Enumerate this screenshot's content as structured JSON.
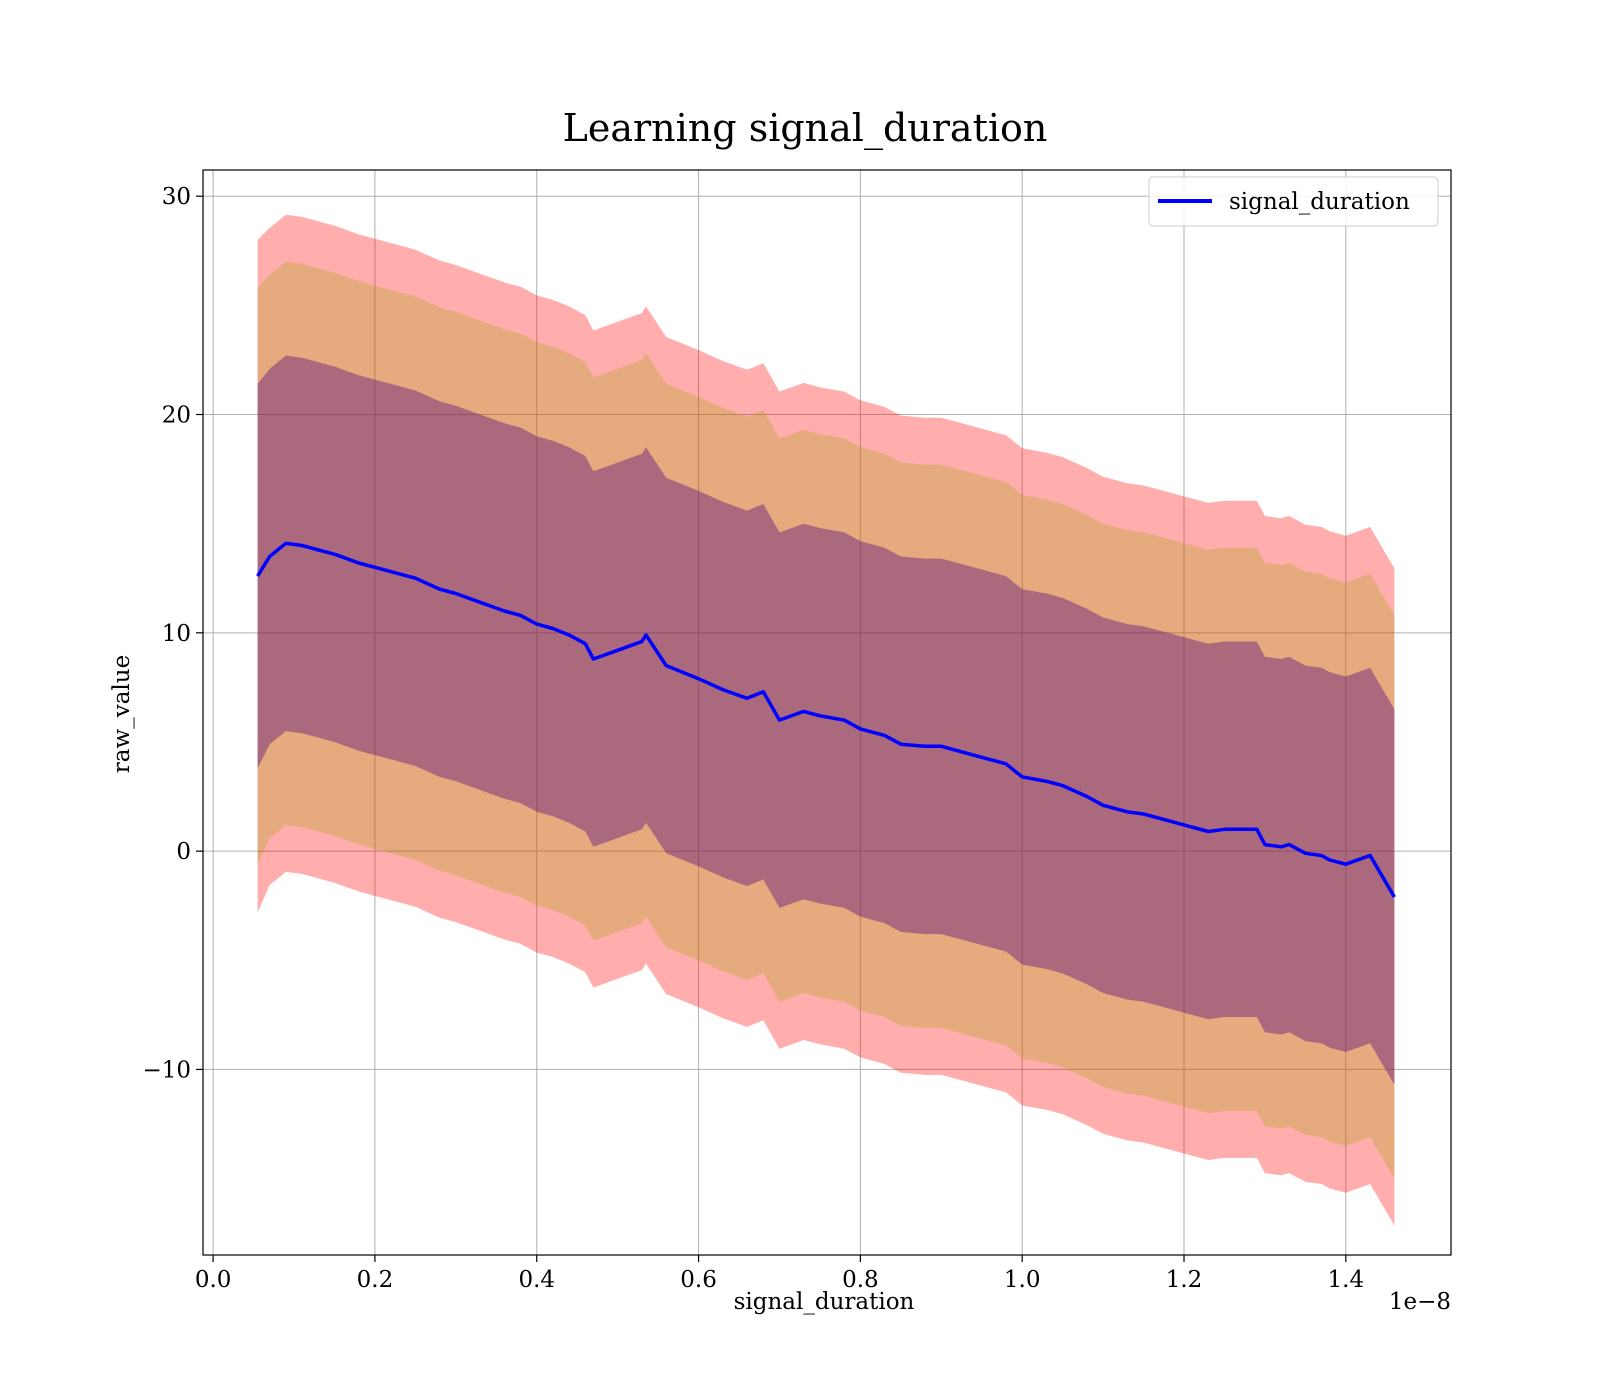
{
  "chart_data": {
    "type": "line",
    "title": "Learning signal_duration",
    "xlabel": "signal_duration",
    "ylabel": "raw_value",
    "x_offset_label": "1e−8",
    "xlim": [
      -0.0125,
      1.53
    ],
    "ylim": [
      -18.5,
      31.2
    ],
    "xticks": [
      0.0,
      0.2,
      0.4,
      0.6,
      0.8,
      1.0,
      1.2,
      1.4
    ],
    "xtick_labels": [
      "0.0",
      "0.2",
      "0.4",
      "0.6",
      "0.8",
      "1.0",
      "1.2",
      "1.4"
    ],
    "yticks": [
      -10,
      0,
      10,
      20,
      30
    ],
    "ytick_labels": [
      "−10",
      "0",
      "10",
      "20",
      "30"
    ],
    "grid": true,
    "legend": {
      "position": "top-right",
      "entries": [
        "signal_duration"
      ]
    },
    "colors": {
      "line": "#0000ff",
      "band_outer": "#ff0000",
      "band_middle": "#a0a000",
      "band_inner": "#4b0082"
    },
    "band_sigma_multipliers": {
      "inner": 1.0,
      "middle": 1.5,
      "outer": 1.75
    },
    "series": [
      {
        "name": "signal_duration",
        "x": [
          0.055,
          0.07,
          0.09,
          0.11,
          0.13,
          0.15,
          0.18,
          0.2,
          0.22,
          0.25,
          0.28,
          0.3,
          0.33,
          0.36,
          0.38,
          0.4,
          0.42,
          0.44,
          0.46,
          0.47,
          0.5,
          0.53,
          0.535,
          0.56,
          0.6,
          0.63,
          0.66,
          0.68,
          0.7,
          0.73,
          0.75,
          0.78,
          0.8,
          0.83,
          0.85,
          0.88,
          0.9,
          0.93,
          0.95,
          0.98,
          1.0,
          1.03,
          1.05,
          1.08,
          1.1,
          1.13,
          1.15,
          1.18,
          1.2,
          1.23,
          1.25,
          1.27,
          1.29,
          1.3,
          1.32,
          1.33,
          1.35,
          1.37,
          1.38,
          1.4,
          1.43,
          1.46
        ],
        "mean": [
          12.6,
          13.5,
          14.1,
          14.0,
          13.8,
          13.6,
          13.2,
          13.0,
          12.8,
          12.5,
          12.0,
          11.8,
          11.4,
          11.0,
          10.8,
          10.4,
          10.2,
          9.9,
          9.5,
          8.8,
          9.2,
          9.6,
          9.9,
          8.5,
          7.9,
          7.4,
          7.0,
          7.3,
          6.0,
          6.4,
          6.2,
          6.0,
          5.6,
          5.3,
          4.9,
          4.8,
          4.8,
          4.5,
          4.3,
          4.0,
          3.4,
          3.2,
          3.0,
          2.5,
          2.1,
          1.8,
          1.7,
          1.4,
          1.2,
          0.9,
          1.0,
          1.0,
          1.0,
          0.3,
          0.2,
          0.3,
          -0.1,
          -0.2,
          -0.4,
          -0.6,
          -0.2,
          -2.1
        ],
        "std": [
          8.8,
          8.6,
          8.6,
          8.6,
          8.6,
          8.6,
          8.6,
          8.6,
          8.6,
          8.6,
          8.6,
          8.6,
          8.6,
          8.6,
          8.6,
          8.6,
          8.6,
          8.6,
          8.6,
          8.6,
          8.6,
          8.6,
          8.6,
          8.6,
          8.6,
          8.6,
          8.6,
          8.6,
          8.6,
          8.6,
          8.6,
          8.6,
          8.6,
          8.6,
          8.6,
          8.6,
          8.6,
          8.6,
          8.6,
          8.6,
          8.6,
          8.6,
          8.6,
          8.6,
          8.6,
          8.6,
          8.6,
          8.6,
          8.6,
          8.6,
          8.6,
          8.6,
          8.6,
          8.6,
          8.6,
          8.6,
          8.6,
          8.6,
          8.6,
          8.6,
          8.6,
          8.6
        ]
      }
    ]
  }
}
